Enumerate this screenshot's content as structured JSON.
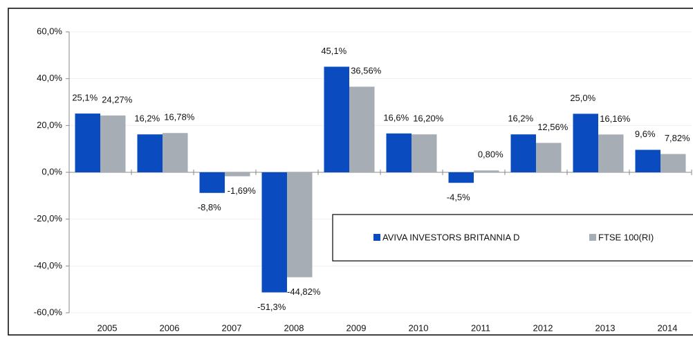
{
  "chart_data": {
    "type": "bar",
    "categories": [
      "2005",
      "2006",
      "2007",
      "2008",
      "2009",
      "2010",
      "2011",
      "2012",
      "2013",
      "2014"
    ],
    "series": [
      {
        "name": "AVIVA INVESTORS BRITANNIA D",
        "color": "#0a4cbf",
        "values": [
          25.1,
          16.2,
          -8.8,
          -51.3,
          45.1,
          16.6,
          -4.5,
          16.2,
          25.0,
          9.6
        ],
        "value_labels": [
          "25,1%",
          "16,2%",
          "-8,8%",
          "-51,3%",
          "45,1%",
          "16,6%",
          "-4,5%",
          "16,2%",
          "25,0%",
          "9,6%"
        ]
      },
      {
        "name": "FTSE 100(RI)",
        "color": "#a6adb4",
        "values": [
          24.27,
          16.78,
          -1.69,
          -44.82,
          36.56,
          16.2,
          0.8,
          12.56,
          16.16,
          7.82
        ],
        "value_labels": [
          "24,27%",
          "16,78%",
          "-1,69%",
          "-44,82%",
          "36,56%",
          "16,20%",
          "0,80%",
          "12,56%",
          "16,16%",
          "7,82%"
        ]
      }
    ],
    "ylim": [
      -60,
      60
    ],
    "yticks": [
      {
        "value": -60,
        "label": "-60,0%"
      },
      {
        "value": -40,
        "label": "-40,0%"
      },
      {
        "value": -20,
        "label": "-20,0%"
      },
      {
        "value": 0,
        "label": "0,0%"
      },
      {
        "value": 20,
        "label": "20,0%"
      },
      {
        "value": 40,
        "label": "40,0%"
      },
      {
        "value": 60,
        "label": "60,0%"
      }
    ],
    "grid": true
  }
}
